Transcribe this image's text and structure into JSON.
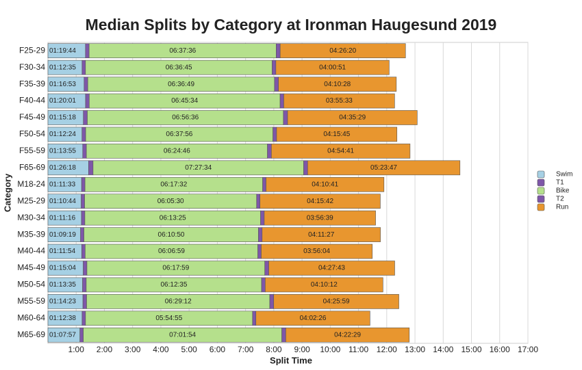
{
  "chart_data": {
    "type": "stacked-bar-horizontal",
    "title": "Median Splits by Category at Ironman Haugesund 2019",
    "x_label": "Split Time",
    "y_label": "Category",
    "categories": [
      "F25-29",
      "F30-34",
      "F35-39",
      "F40-44",
      "F45-49",
      "F50-54",
      "F55-59",
      "F65-69",
      "M18-24",
      "M25-29",
      "M30-34",
      "M35-39",
      "M40-44",
      "M45-49",
      "M50-54",
      "M55-59",
      "M60-64",
      "M65-69"
    ],
    "series": [
      {
        "name": "Swim",
        "color": "#a6d0e4",
        "values": [
          1.3289,
          1.2097,
          1.2814,
          1.3336,
          1.255,
          1.2067,
          1.2319,
          1.4383,
          1.1925,
          1.1789,
          1.1878,
          1.1553,
          1.1983,
          1.2511,
          1.2264,
          1.2397,
          1.2106,
          1.1325
        ],
        "value_labels": [
          "01:19:44",
          "01:12:35",
          "01:16:53",
          "01:20:01",
          "01:15:18",
          "01:12:24",
          "01:13:55",
          "01:26:18",
          "01:11:33",
          "01:10:44",
          "01:11:16",
          "01:09:19",
          "01:11:54",
          "01:15:04",
          "01:13:35",
          "01:14:23",
          "01:12:38",
          "01:07:57"
        ]
      },
      {
        "name": "T1",
        "color": "#7e57a8",
        "values": [
          0.13,
          0.12,
          0.13,
          0.13,
          0.14,
          0.13,
          0.13,
          0.16,
          0.12,
          0.12,
          0.12,
          0.12,
          0.12,
          0.13,
          0.13,
          0.13,
          0.12,
          0.12
        ]
      },
      {
        "name": "Bike",
        "color": "#b5e08c",
        "values": [
          6.6267,
          6.6125,
          6.6136,
          6.7594,
          6.9433,
          6.6322,
          6.4128,
          7.4594,
          6.2922,
          6.0917,
          6.2236,
          6.1806,
          6.1164,
          6.2997,
          6.2097,
          6.4867,
          5.9153,
          7.0317
        ],
        "value_labels": [
          "06:37:36",
          "06:36:45",
          "06:36:49",
          "06:45:34",
          "06:56:36",
          "06:37:56",
          "06:24:46",
          "07:27:34",
          "06:17:32",
          "06:05:30",
          "06:13:25",
          "06:10:50",
          "06:06:59",
          "06:17:59",
          "06:12:35",
          "06:29:12",
          "05:54:55",
          "07:01:54"
        ]
      },
      {
        "name": "T2",
        "color": "#7e57a8",
        "values": [
          0.14,
          0.13,
          0.14,
          0.13,
          0.15,
          0.13,
          0.14,
          0.14,
          0.12,
          0.12,
          0.13,
          0.13,
          0.12,
          0.14,
          0.13,
          0.14,
          0.12,
          0.14
        ]
      },
      {
        "name": "Run",
        "color": "#e8962f",
        "values": [
          4.4389,
          4.0142,
          4.1744,
          3.9258,
          4.5914,
          4.2625,
          4.9114,
          5.3964,
          4.1781,
          4.2617,
          3.9442,
          4.1908,
          3.9344,
          4.4619,
          4.17,
          4.4331,
          4.0406,
          4.3747
        ],
        "value_labels": [
          "04:26:20",
          "04:00:51",
          "04:10:28",
          "03:55:33",
          "04:35:29",
          "04:15:45",
          "04:54:41",
          "05:23:47",
          "04:10:41",
          "04:15:42",
          "03:56:39",
          "04:11:27",
          "03:56:04",
          "04:27:43",
          "04:10:12",
          "04:25:59",
          "04:02:26",
          "04:22:29"
        ]
      }
    ],
    "label_series": [
      "Swim",
      "Bike",
      "Run"
    ],
    "xlim": [
      0,
      17
    ],
    "xticks": [
      {
        "value": 1,
        "label": "1:00"
      },
      {
        "value": 2,
        "label": "2:00"
      },
      {
        "value": 3,
        "label": "3:00"
      },
      {
        "value": 4,
        "label": "4:00"
      },
      {
        "value": 5,
        "label": "5:00"
      },
      {
        "value": 6,
        "label": "6:00"
      },
      {
        "value": 7,
        "label": "7:00"
      },
      {
        "value": 8,
        "label": "8:00"
      },
      {
        "value": 9,
        "label": "9:00"
      },
      {
        "value": 10,
        "label": "10:00"
      },
      {
        "value": 11,
        "label": "11:00"
      },
      {
        "value": 12,
        "label": "12:00"
      },
      {
        "value": 13,
        "label": "13:00"
      },
      {
        "value": 14,
        "label": "14:00"
      },
      {
        "value": 15,
        "label": "15:00"
      },
      {
        "value": 16,
        "label": "16:00"
      },
      {
        "value": 17,
        "label": "17:00"
      }
    ],
    "grid": true,
    "legend": "right"
  }
}
